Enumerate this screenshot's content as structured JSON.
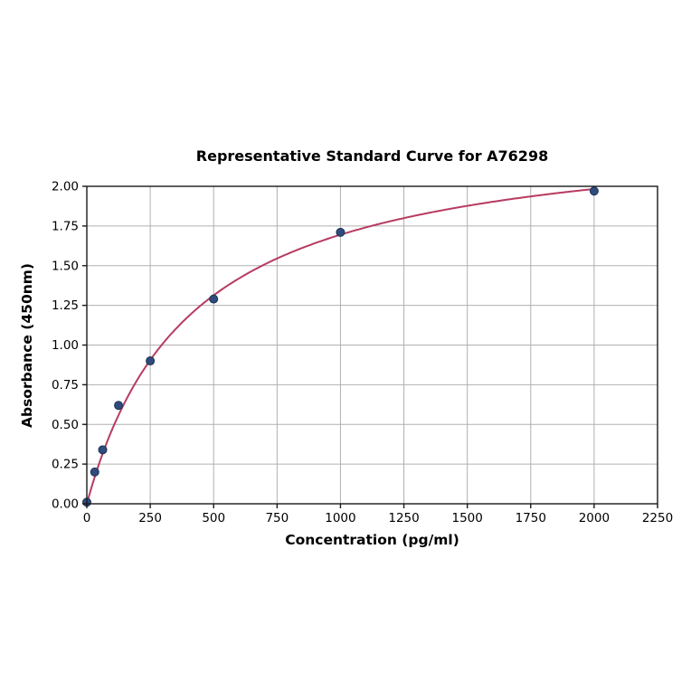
{
  "chart_data": {
    "type": "scatter",
    "title": "Representative Standard Curve for A76298",
    "xlabel": "Concentration (pg/ml)",
    "ylabel": "Absorbance (450nm)",
    "xlim": [
      0,
      2250
    ],
    "ylim": [
      0,
      2.0
    ],
    "grid": true,
    "legend": "none",
    "points": {
      "x": [
        0,
        31.25,
        62.5,
        125,
        250,
        500,
        1000,
        2000
      ],
      "y": [
        0.01,
        0.2,
        0.34,
        0.62,
        0.9,
        1.29,
        1.71,
        1.97
      ]
    },
    "fit_curve": {
      "model": "saturation y = vmax*x/(km+x)",
      "vmax": 2.39,
      "km": 410,
      "x_start": 0,
      "x_end": 2000
    },
    "xticks": {
      "values": [
        0,
        250,
        500,
        750,
        1000,
        1250,
        1500,
        1750,
        2000,
        2250
      ],
      "labels": [
        "0",
        "250",
        "500",
        "750",
        "1000",
        "1250",
        "1500",
        "1750",
        "2000",
        "2250"
      ]
    },
    "yticks": {
      "values": [
        0.0,
        0.25,
        0.5,
        0.75,
        1.0,
        1.25,
        1.5,
        1.75,
        2.0
      ],
      "labels": [
        "0.00",
        "0.25",
        "0.50",
        "0.75",
        "1.00",
        "1.25",
        "1.50",
        "1.75",
        "2.00"
      ]
    },
    "colors": {
      "curve": "#b73b60",
      "marker": "#2f4b7c",
      "marker_edge": "#1d3355",
      "grid": "#b0b0b0",
      "spine": "#1a1a1a",
      "text": "#000000",
      "background": "#ffffff"
    }
  }
}
